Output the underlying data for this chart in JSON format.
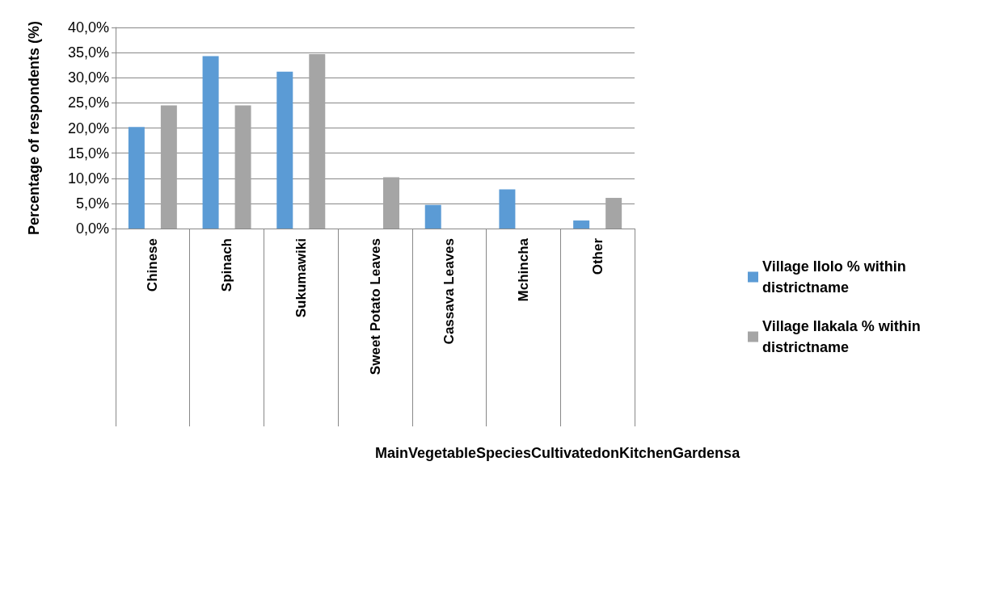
{
  "chart_data": {
    "type": "bar",
    "annotations": [
      "MainVegetableSpeciesCultivatedonKitchenGardensa"
    ],
    "ylabel": "Percentage of respondents (%)",
    "categories": [
      "Chinese",
      "Spinach",
      "Sukumawiki",
      "Sweet Potato Leaves",
      "Cassava Leaves",
      "Mchincha",
      "Other"
    ],
    "series": [
      {
        "name": "Village Ilolo % within districtname",
        "color": "#5b9bd5",
        "values": [
          20.2,
          34.3,
          31.2,
          0,
          4.7,
          7.8,
          1.6
        ]
      },
      {
        "name": "Village Ilakala % within districtname",
        "color": "#a5a5a5",
        "values": [
          24.5,
          24.5,
          34.7,
          10.2,
          0,
          0,
          6.1
        ]
      }
    ],
    "ylim": [
      0,
      40
    ],
    "yticks": [
      {
        "value": 0,
        "label": "0,0%"
      },
      {
        "value": 5,
        "label": "5,0%"
      },
      {
        "value": 10,
        "label": "10,0%"
      },
      {
        "value": 15,
        "label": "15,0%"
      },
      {
        "value": 20,
        "label": "20,0%"
      },
      {
        "value": 25,
        "label": "25,0%"
      },
      {
        "value": 30,
        "label": "30,0%"
      },
      {
        "value": 35,
        "label": "35,0%"
      },
      {
        "value": 40,
        "label": "40,0%"
      }
    ],
    "grid": "y",
    "legend": "right"
  }
}
